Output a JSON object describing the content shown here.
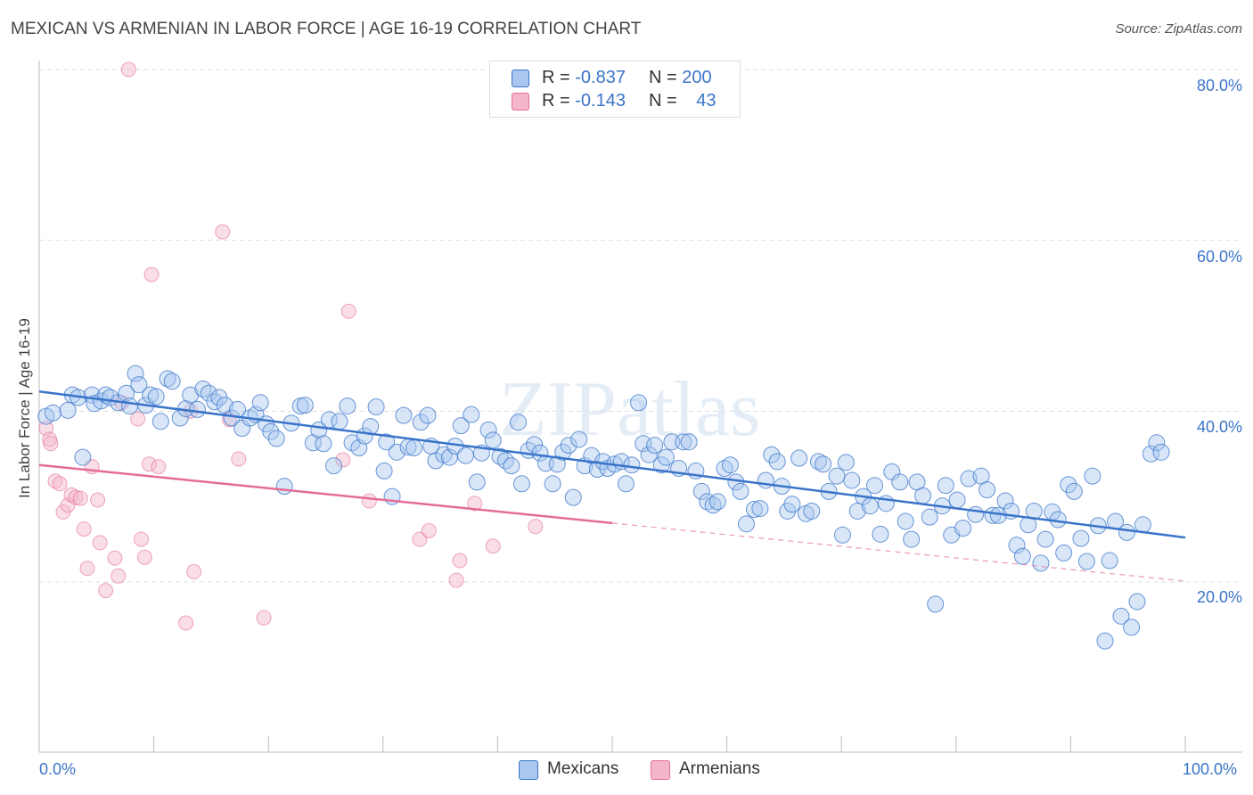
{
  "header": {
    "title": "MEXICAN VS ARMENIAN IN LABOR FORCE | AGE 16-19 CORRELATION CHART",
    "source": "Source: ZipAtlas.com"
  },
  "watermark": "ZIPatlas",
  "legend": {
    "rows": [
      {
        "r_label": "R =",
        "r_value": "-0.837",
        "n_label": "N =",
        "n_value": "200",
        "color": "#a9c7ef"
      },
      {
        "r_label": "R =",
        "r_value": "-0.143",
        "n_label": "N =",
        "n_value": "43",
        "color": "#f5b6c9"
      }
    ]
  },
  "bottom_legend": {
    "items": [
      {
        "label": "Mexicans",
        "color": "#a9c7ef"
      },
      {
        "label": "Armenians",
        "color": "#f5b6c9"
      }
    ]
  },
  "chart_data": {
    "type": "scatter",
    "title": "MEXICAN VS ARMENIAN IN LABOR FORCE | AGE 16-19 CORRELATION CHART",
    "xlabel": "",
    "ylabel": "In Labor Force | Age 16-19",
    "xlim": [
      0,
      100
    ],
    "ylim": [
      2,
      82
    ],
    "x_tick_labels": [
      "0.0%",
      "100.0%"
    ],
    "y_ticks": [
      20,
      40,
      60,
      80
    ],
    "y_tick_labels": [
      "20.0%",
      "40.0%",
      "60.0%",
      "80.0%"
    ],
    "grid": true,
    "legend_position": "top-center",
    "colors": {
      "mexicans": "#3a74c8",
      "mexicans_fill": "#a9c7ef",
      "armenians": "#e36c96",
      "armenians_fill": "#f5b6c9"
    },
    "series": [
      {
        "name": "Mexicans",
        "trend": {
          "x": [
            0,
            100
          ],
          "y": [
            42.3,
            25.2
          ]
        },
        "points": [
          [
            0.6,
            39.4
          ],
          [
            1.2,
            39.8
          ],
          [
            2.5,
            40.1
          ],
          [
            2.9,
            41.9
          ],
          [
            3.4,
            41.6
          ],
          [
            3.8,
            34.6
          ],
          [
            4.6,
            41.9
          ],
          [
            4.8,
            40.9
          ],
          [
            5.4,
            41.2
          ],
          [
            5.8,
            41.9
          ],
          [
            6.2,
            41.6
          ],
          [
            6.9,
            41.0
          ],
          [
            7.6,
            42.1
          ],
          [
            7.9,
            40.6
          ],
          [
            8.4,
            44.4
          ],
          [
            8.7,
            43.1
          ],
          [
            9.3,
            40.7
          ],
          [
            9.7,
            41.9
          ],
          [
            10.2,
            41.7
          ],
          [
            10.6,
            38.8
          ],
          [
            11.2,
            43.8
          ],
          [
            11.6,
            43.5
          ],
          [
            12.3,
            39.2
          ],
          [
            12.8,
            40.3
          ],
          [
            13.2,
            41.9
          ],
          [
            13.8,
            40.2
          ],
          [
            14.3,
            42.6
          ],
          [
            14.8,
            42.1
          ],
          [
            15.3,
            41.1
          ],
          [
            15.7,
            41.6
          ],
          [
            16.2,
            40.7
          ],
          [
            16.8,
            39.2
          ],
          [
            17.3,
            40.2
          ],
          [
            17.7,
            38.0
          ],
          [
            18.4,
            39.2
          ],
          [
            18.9,
            39.6
          ],
          [
            19.3,
            41.0
          ],
          [
            19.8,
            38.5
          ],
          [
            20.2,
            37.6
          ],
          [
            20.7,
            36.8
          ],
          [
            21.4,
            31.2
          ],
          [
            22.0,
            38.6
          ],
          [
            22.8,
            40.6
          ],
          [
            23.2,
            40.7
          ],
          [
            23.9,
            36.3
          ],
          [
            24.4,
            37.8
          ],
          [
            24.8,
            36.2
          ],
          [
            25.3,
            39.0
          ],
          [
            25.7,
            33.6
          ],
          [
            26.2,
            38.8
          ],
          [
            26.9,
            40.6
          ],
          [
            27.3,
            36.3
          ],
          [
            27.9,
            35.7
          ],
          [
            28.4,
            37.1
          ],
          [
            28.9,
            38.2
          ],
          [
            29.4,
            40.5
          ],
          [
            30.1,
            33.0
          ],
          [
            30.3,
            36.4
          ],
          [
            30.8,
            30.0
          ],
          [
            31.2,
            35.2
          ],
          [
            31.8,
            39.5
          ],
          [
            32.2,
            35.8
          ],
          [
            32.7,
            35.7
          ],
          [
            33.3,
            38.7
          ],
          [
            33.9,
            39.5
          ],
          [
            34.2,
            35.9
          ],
          [
            34.6,
            34.2
          ],
          [
            35.3,
            34.9
          ],
          [
            35.8,
            34.6
          ],
          [
            36.3,
            35.9
          ],
          [
            36.8,
            38.3
          ],
          [
            37.2,
            34.8
          ],
          [
            37.7,
            39.6
          ],
          [
            38.2,
            31.7
          ],
          [
            38.6,
            35.1
          ],
          [
            39.2,
            37.8
          ],
          [
            39.6,
            36.6
          ],
          [
            40.2,
            34.7
          ],
          [
            40.7,
            34.2
          ],
          [
            41.2,
            33.6
          ],
          [
            41.8,
            38.7
          ],
          [
            42.1,
            31.5
          ],
          [
            42.7,
            35.4
          ],
          [
            43.2,
            36.1
          ],
          [
            43.7,
            35.1
          ],
          [
            44.2,
            33.9
          ],
          [
            44.8,
            31.5
          ],
          [
            45.2,
            33.8
          ],
          [
            45.7,
            35.2
          ],
          [
            46.2,
            36.0
          ],
          [
            46.6,
            29.9
          ],
          [
            47.1,
            36.7
          ],
          [
            47.6,
            33.6
          ],
          [
            48.2,
            34.8
          ],
          [
            48.7,
            33.2
          ],
          [
            49.2,
            34.1
          ],
          [
            49.6,
            33.3
          ],
          [
            50.2,
            33.8
          ],
          [
            50.8,
            34.1
          ],
          [
            51.2,
            31.5
          ],
          [
            51.7,
            33.7
          ],
          [
            52.3,
            41.0
          ],
          [
            52.7,
            36.2
          ],
          [
            53.2,
            34.9
          ],
          [
            53.7,
            36.0
          ],
          [
            54.3,
            33.7
          ],
          [
            54.7,
            34.6
          ],
          [
            55.2,
            36.4
          ],
          [
            55.8,
            33.3
          ],
          [
            56.2,
            36.4
          ],
          [
            56.7,
            36.4
          ],
          [
            57.3,
            33.0
          ],
          [
            57.8,
            30.6
          ],
          [
            58.3,
            29.4
          ],
          [
            58.8,
            29.0
          ],
          [
            59.2,
            29.4
          ],
          [
            59.8,
            33.3
          ],
          [
            60.3,
            33.7
          ],
          [
            60.8,
            31.7
          ],
          [
            61.2,
            30.6
          ],
          [
            61.7,
            26.8
          ],
          [
            62.4,
            28.5
          ],
          [
            62.9,
            28.6
          ],
          [
            63.4,
            31.9
          ],
          [
            63.9,
            34.9
          ],
          [
            64.4,
            34.1
          ],
          [
            64.8,
            31.2
          ],
          [
            65.3,
            28.3
          ],
          [
            65.7,
            29.1
          ],
          [
            66.3,
            34.5
          ],
          [
            66.9,
            28.0
          ],
          [
            67.4,
            28.3
          ],
          [
            68.0,
            34.1
          ],
          [
            68.4,
            33.8
          ],
          [
            68.9,
            30.6
          ],
          [
            69.6,
            32.4
          ],
          [
            70.1,
            25.5
          ],
          [
            70.4,
            34.0
          ],
          [
            70.9,
            31.9
          ],
          [
            71.4,
            28.3
          ],
          [
            71.9,
            30.0
          ],
          [
            72.5,
            28.9
          ],
          [
            72.9,
            31.3
          ],
          [
            73.4,
            25.6
          ],
          [
            73.9,
            29.2
          ],
          [
            74.4,
            32.9
          ],
          [
            75.1,
            31.7
          ],
          [
            75.6,
            27.1
          ],
          [
            76.1,
            25.0
          ],
          [
            76.6,
            31.7
          ],
          [
            77.1,
            30.1
          ],
          [
            77.7,
            27.6
          ],
          [
            78.2,
            17.4
          ],
          [
            78.8,
            28.9
          ],
          [
            79.1,
            31.3
          ],
          [
            79.6,
            25.5
          ],
          [
            80.1,
            29.6
          ],
          [
            80.6,
            26.3
          ],
          [
            81.1,
            32.1
          ],
          [
            81.7,
            27.9
          ],
          [
            82.2,
            32.4
          ],
          [
            82.7,
            30.8
          ],
          [
            83.2,
            27.8
          ],
          [
            83.7,
            27.8
          ],
          [
            84.3,
            29.5
          ],
          [
            84.8,
            28.3
          ],
          [
            85.3,
            24.3
          ],
          [
            85.8,
            23.0
          ],
          [
            86.3,
            26.7
          ],
          [
            86.8,
            28.3
          ],
          [
            87.4,
            22.2
          ],
          [
            87.8,
            25.0
          ],
          [
            88.4,
            28.2
          ],
          [
            88.9,
            27.3
          ],
          [
            89.4,
            23.4
          ],
          [
            89.8,
            31.4
          ],
          [
            90.3,
            30.6
          ],
          [
            90.9,
            25.1
          ],
          [
            91.4,
            22.4
          ],
          [
            91.9,
            32.4
          ],
          [
            92.4,
            26.6
          ],
          [
            93.0,
            13.1
          ],
          [
            93.4,
            22.5
          ],
          [
            93.9,
            27.1
          ],
          [
            94.4,
            16.0
          ],
          [
            94.9,
            25.8
          ],
          [
            95.3,
            14.7
          ],
          [
            95.8,
            17.7
          ],
          [
            96.3,
            26.7
          ],
          [
            97.0,
            35.0
          ],
          [
            97.5,
            36.3
          ],
          [
            97.9,
            35.2
          ]
        ]
      },
      {
        "name": "Armenians",
        "trend": {
          "x": [
            0,
            50
          ],
          "y": [
            33.7,
            26.9
          ]
        },
        "trend_dashed": {
          "x": [
            50,
            100
          ],
          "y": [
            26.9,
            20.1
          ]
        },
        "points": [
          [
            0.6,
            38.0
          ],
          [
            0.9,
            36.7
          ],
          [
            1.0,
            36.2
          ],
          [
            1.4,
            31.8
          ],
          [
            1.8,
            31.5
          ],
          [
            2.1,
            28.2
          ],
          [
            2.5,
            29.0
          ],
          [
            2.8,
            30.2
          ],
          [
            3.2,
            29.9
          ],
          [
            3.6,
            29.8
          ],
          [
            3.9,
            26.2
          ],
          [
            4.2,
            21.6
          ],
          [
            4.6,
            33.5
          ],
          [
            5.1,
            29.6
          ],
          [
            5.3,
            24.6
          ],
          [
            5.8,
            19.0
          ],
          [
            6.6,
            22.8
          ],
          [
            6.9,
            20.7
          ],
          [
            7.2,
            41.0
          ],
          [
            7.8,
            80.0
          ],
          [
            8.6,
            39.1
          ],
          [
            8.9,
            25.0
          ],
          [
            9.2,
            22.9
          ],
          [
            9.6,
            33.8
          ],
          [
            9.8,
            56.0
          ],
          [
            10.4,
            33.5
          ],
          [
            12.8,
            15.2
          ],
          [
            13.2,
            40.0
          ],
          [
            13.5,
            21.2
          ],
          [
            16.0,
            61.0
          ],
          [
            16.6,
            39.0
          ],
          [
            17.4,
            34.4
          ],
          [
            19.6,
            15.8
          ],
          [
            26.5,
            34.3
          ],
          [
            27.0,
            51.7
          ],
          [
            28.8,
            29.5
          ],
          [
            33.2,
            25.0
          ],
          [
            34.0,
            26.0
          ],
          [
            36.4,
            20.2
          ],
          [
            36.7,
            22.5
          ],
          [
            38.0,
            29.2
          ],
          [
            39.6,
            24.2
          ],
          [
            43.3,
            26.5
          ]
        ]
      }
    ]
  }
}
